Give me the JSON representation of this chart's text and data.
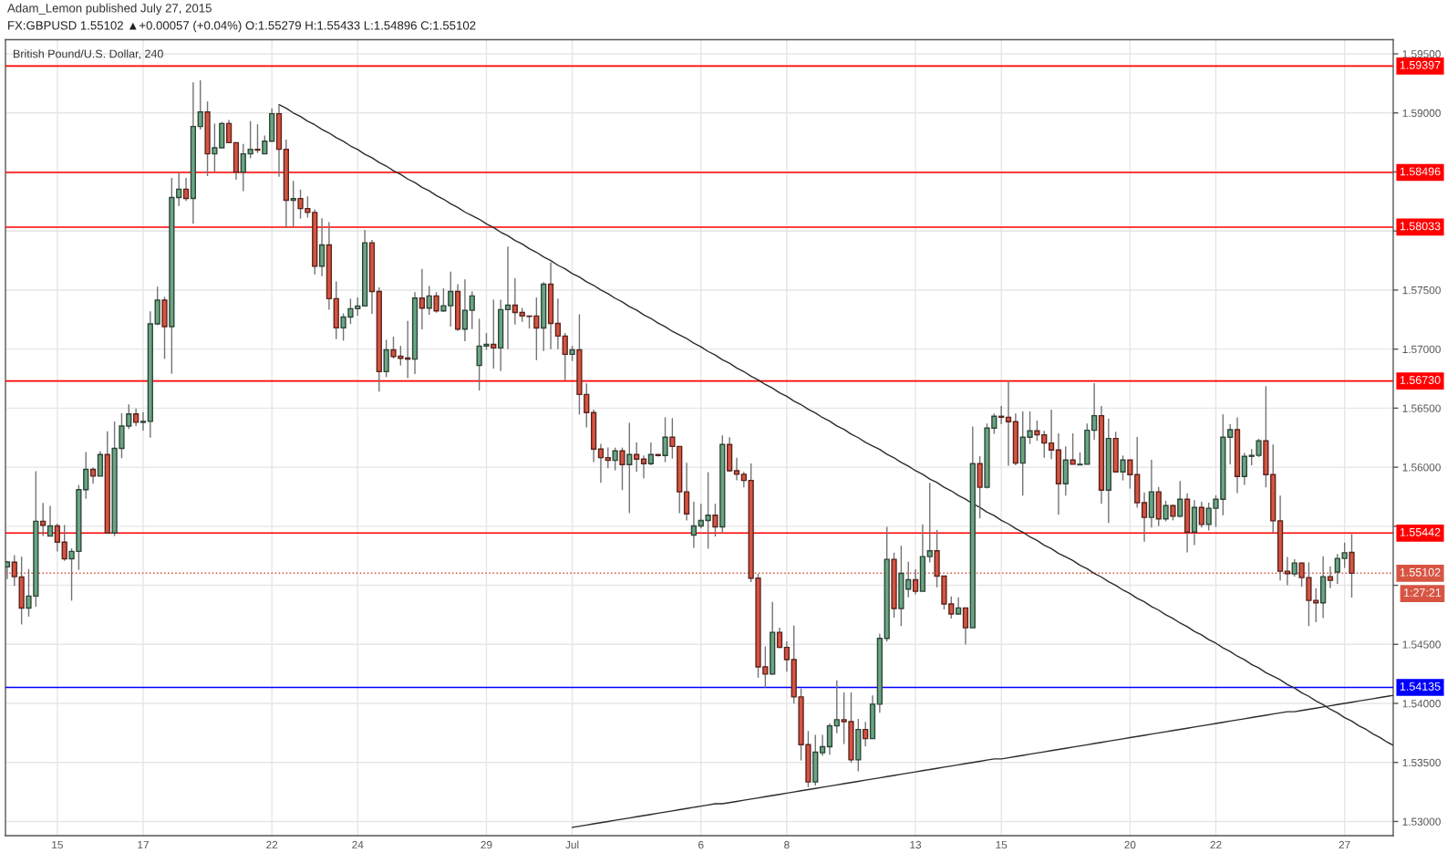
{
  "chart_data": {
    "type": "candlestick",
    "title": "British Pound/U.S. Dollar, 240",
    "subtitle": "FX:GBPUSD 1.55102 ▲+0.00057 (+0.04%) O:1.55279 H:1.55433 L:1.54896 C:1.55102",
    "annotations": [
      "Adam_Lemon published July 27, 2015",
      "1:27:21"
    ],
    "categories": [
      null,
      null,
      null,
      null,
      null,
      null,
      null,
      "15",
      null,
      null,
      null,
      null,
      null,
      null,
      null,
      null,
      null,
      null,
      null,
      "17",
      null,
      null,
      null,
      null,
      null,
      null,
      null,
      null,
      null,
      null,
      null,
      null,
      null,
      null,
      null,
      null,
      null,
      "22",
      null,
      null,
      null,
      null,
      null,
      null,
      null,
      null,
      null,
      null,
      null,
      "24",
      null,
      null,
      null,
      null,
      null,
      null,
      null,
      null,
      null,
      null,
      null,
      null,
      null,
      null,
      null,
      null,
      null,
      "29",
      null,
      null,
      null,
      null,
      null,
      null,
      null,
      null,
      null,
      null,
      null,
      "Jul",
      null,
      null,
      null,
      null,
      null,
      null,
      null,
      null,
      null,
      null,
      null,
      null,
      null,
      null,
      null,
      null,
      null,
      "6",
      null,
      null,
      null,
      null,
      null,
      null,
      null,
      null,
      null,
      null,
      null,
      "8",
      null,
      null,
      null,
      null,
      null,
      null,
      null,
      null,
      null,
      null,
      null,
      null,
      null,
      null,
      null,
      null,
      null,
      "13",
      null,
      null,
      null,
      null,
      null,
      null,
      null,
      null,
      null,
      null,
      null,
      "15",
      null,
      null,
      null,
      null,
      null,
      null,
      null,
      null,
      null,
      null,
      null,
      null,
      null,
      null,
      null,
      null,
      null,
      "20",
      null,
      null,
      null,
      null,
      null,
      null,
      null,
      null,
      null,
      null,
      null,
      "22",
      null,
      null,
      null,
      null,
      null,
      null,
      null,
      null,
      null,
      null,
      null,
      null,
      null,
      null,
      null,
      null,
      null,
      "27",
      null,
      null,
      null,
      null,
      null,
      null,
      null
    ],
    "ohlc": [
      [
        1.55156,
        1.55208,
        1.55052,
        1.55198
      ],
      [
        1.55196,
        1.55255,
        1.54995,
        1.55073
      ],
      [
        1.5507,
        1.55242,
        1.54669,
        1.54807
      ],
      [
        1.54807,
        1.55138,
        1.54735,
        1.54909
      ],
      [
        1.54909,
        1.55966,
        1.54818,
        1.55542
      ],
      [
        1.55542,
        1.55698,
        1.55417,
        1.55508
      ],
      [
        1.55417,
        1.55672,
        1.55417,
        1.55503
      ],
      [
        1.55503,
        1.55521,
        1.55287,
        1.55365
      ],
      [
        1.55365,
        1.55511,
        1.55208,
        1.55224
      ],
      [
        1.55224,
        1.55313,
        1.5487,
        1.55287
      ],
      [
        1.55287,
        1.55849,
        1.5513,
        1.5581
      ],
      [
        1.5581,
        1.56128,
        1.55732,
        1.55982
      ],
      [
        1.55982,
        1.55997,
        1.5586,
        1.55925
      ],
      [
        1.55925,
        1.56136,
        1.55925,
        1.56107
      ],
      [
        1.56107,
        1.56305,
        1.55443,
        1.55443
      ],
      [
        1.55443,
        1.56388,
        1.55417,
        1.56159
      ],
      [
        1.56159,
        1.56458,
        1.56076,
        1.56349
      ],
      [
        1.56349,
        1.56531,
        1.56323,
        1.56451
      ],
      [
        1.56451,
        1.56497,
        1.56349,
        1.5638
      ],
      [
        1.5638,
        1.56466,
        1.5631,
        1.56388
      ],
      [
        1.56388,
        1.5732,
        1.5625,
        1.57214
      ],
      [
        1.57214,
        1.57529,
        1.57203,
        1.57414
      ],
      [
        1.57414,
        1.57443,
        1.56917,
        1.5719
      ],
      [
        1.5719,
        1.5845,
        1.56792,
        1.58284
      ],
      [
        1.58284,
        1.5849,
        1.58211,
        1.58354
      ],
      [
        1.58354,
        1.5845,
        1.58255,
        1.58276
      ],
      [
        1.58276,
        1.59258,
        1.58062,
        1.58885
      ],
      [
        1.58885,
        1.59276,
        1.58859,
        1.59008
      ],
      [
        1.59008,
        1.59096,
        1.58466,
        1.58653
      ],
      [
        1.58653,
        1.5891,
        1.58504,
        1.58705
      ],
      [
        1.58705,
        1.58923,
        1.58705,
        1.5891
      ],
      [
        1.5891,
        1.58941,
        1.58748,
        1.58748
      ],
      [
        1.58748,
        1.58748,
        1.58435,
        1.58499
      ],
      [
        1.58499,
        1.58738,
        1.58337,
        1.58653
      ],
      [
        1.58653,
        1.58931,
        1.58615,
        1.58692
      ],
      [
        1.58692,
        1.58903,
        1.58661,
        1.58684
      ],
      [
        1.58653,
        1.58808,
        1.58653,
        1.58761
      ],
      [
        1.58761,
        1.59039,
        1.58761,
        1.58993
      ],
      [
        1.58993,
        1.5907,
        1.5846,
        1.58692
      ],
      [
        1.58692,
        1.58774,
        1.58028,
        1.5826
      ],
      [
        1.5826,
        1.58424,
        1.58028,
        1.58275
      ],
      [
        1.58275,
        1.58352,
        1.58106,
        1.5819
      ],
      [
        1.5819,
        1.58293,
        1.58113,
        1.58157
      ],
      [
        1.58157,
        1.58183,
        1.57632,
        1.57702
      ],
      [
        1.57702,
        1.58108,
        1.57617,
        1.57882
      ],
      [
        1.57882,
        1.58075,
        1.57334,
        1.57427
      ],
      [
        1.57427,
        1.57573,
        1.57085,
        1.5718
      ],
      [
        1.5718,
        1.57303,
        1.57072,
        1.57272
      ],
      [
        1.57272,
        1.57427,
        1.57213,
        1.57342
      ],
      [
        1.57342,
        1.57437,
        1.57282,
        1.57365
      ],
      [
        1.57365,
        1.5801,
        1.5736,
        1.579
      ],
      [
        1.579,
        1.57925,
        1.57298,
        1.57488
      ],
      [
        1.57488,
        1.57522,
        1.5664,
        1.56809
      ],
      [
        1.56809,
        1.57079,
        1.56763,
        1.56994
      ],
      [
        1.56994,
        1.57105,
        1.5692,
        1.56938
      ],
      [
        1.5694,
        1.57028,
        1.56861,
        1.56922
      ],
      [
        1.56925,
        1.57239,
        1.56755,
        1.56915
      ],
      [
        1.56915,
        1.57483,
        1.56789,
        1.57432
      ],
      [
        1.57432,
        1.5768,
        1.57167,
        1.57347
      ],
      [
        1.57347,
        1.57535,
        1.5729,
        1.5745
      ],
      [
        1.5745,
        1.57483,
        1.57308,
        1.57324
      ],
      [
        1.57324,
        1.57514,
        1.57316,
        1.57367
      ],
      [
        1.57367,
        1.57655,
        1.5719,
        1.57488
      ],
      [
        1.57488,
        1.5755,
        1.57154,
        1.57169
      ],
      [
        1.57169,
        1.57591,
        1.57066,
        1.57329
      ],
      [
        1.57329,
        1.57488,
        1.57169,
        1.5745
      ],
      [
        1.56861,
        1.57257,
        1.5665,
        1.57025
      ],
      [
        1.57025,
        1.57136,
        1.56994,
        1.5704
      ],
      [
        1.5704,
        1.57419,
        1.56835,
        1.5701
      ],
      [
        1.5701,
        1.57419,
        1.56814,
        1.57334
      ],
      [
        1.57334,
        1.57869,
        1.57,
        1.57372
      ],
      [
        1.57372,
        1.57599,
        1.57208,
        1.5731
      ],
      [
        1.5731,
        1.57349,
        1.57231,
        1.5728
      ],
      [
        1.5728,
        1.57282,
        1.57174,
        1.57277
      ],
      [
        1.5728,
        1.57437,
        1.56907,
        1.57179
      ],
      [
        1.57179,
        1.57568,
        1.56984,
        1.5755
      ],
      [
        1.5755,
        1.57735,
        1.57,
        1.57218
      ],
      [
        1.57218,
        1.57429,
        1.57,
        1.5711
      ],
      [
        1.5711,
        1.57136,
        1.56737,
        1.56956
      ],
      [
        1.56956,
        1.57028,
        1.56899,
        1.56994
      ],
      [
        1.56994,
        1.57295,
        1.56446,
        1.56616
      ],
      [
        1.56616,
        1.5671,
        1.56336,
        1.56462
      ],
      [
        1.56462,
        1.56488,
        1.56043,
        1.56153
      ],
      [
        1.56153,
        1.56197,
        1.55868,
        1.56081
      ],
      [
        1.56081,
        1.56166,
        1.55991,
        1.56058
      ],
      [
        1.56058,
        1.56166,
        1.55973,
        1.56138
      ],
      [
        1.56138,
        1.56166,
        1.55806,
        1.56022
      ],
      [
        1.56022,
        1.56377,
        1.55611,
        1.56107
      ],
      [
        1.56107,
        1.5621,
        1.5596,
        1.56068
      ],
      [
        1.56068,
        1.561,
        1.55906,
        1.5603
      ],
      [
        1.5603,
        1.5621,
        1.56017,
        1.56107
      ],
      [
        1.56107,
        1.5611,
        1.5609,
        1.56099
      ],
      [
        1.56099,
        1.56423,
        1.56043,
        1.56254
      ],
      [
        1.56254,
        1.56416,
        1.56073,
        1.56176
      ],
      [
        1.56176,
        1.56176,
        1.55611,
        1.55791
      ],
      [
        1.55791,
        1.56037,
        1.55549,
        1.55605
      ],
      [
        1.55425,
        1.55708,
        1.55317,
        1.55503
      ],
      [
        1.55503,
        1.5569,
        1.55482,
        1.55549
      ],
      [
        1.55549,
        1.55958,
        1.5531,
        1.55593
      ],
      [
        1.55593,
        1.5569,
        1.55413,
        1.55495
      ],
      [
        1.55495,
        1.5627,
        1.55438,
        1.56192
      ],
      [
        1.56192,
        1.56254,
        1.5596,
        1.5597
      ],
      [
        1.5597,
        1.56081,
        1.55888,
        1.5594
      ],
      [
        1.5594,
        1.5596,
        1.55829,
        1.55888
      ],
      [
        1.55888,
        1.56032,
        1.55027,
        1.5506
      ],
      [
        1.5506,
        1.55096,
        1.54217,
        1.54309
      ],
      [
        1.54309,
        1.54482,
        1.54134,
        1.54248
      ],
      [
        1.54248,
        1.5486,
        1.5424,
        1.54602
      ],
      [
        1.54602,
        1.54641,
        1.54469,
        1.54474
      ],
      [
        1.54474,
        1.54525,
        1.54268,
        1.54371
      ],
      [
        1.54371,
        1.54659,
        1.53998,
        1.54055
      ],
      [
        1.54055,
        1.54127,
        1.53517,
        1.53651
      ],
      [
        1.53651,
        1.53766,
        1.53291,
        1.53335
      ],
      [
        1.53335,
        1.53733,
        1.53304,
        1.53587
      ],
      [
        1.53582,
        1.53733,
        1.53556,
        1.53633
      ],
      [
        1.53633,
        1.53831,
        1.53566,
        1.5381
      ],
      [
        1.5381,
        1.54196,
        1.53748,
        1.53862
      ],
      [
        1.53862,
        1.54093,
        1.53656,
        1.53846
      ],
      [
        1.53846,
        1.54093,
        1.53497,
        1.53522
      ],
      [
        1.53522,
        1.53869,
        1.53425,
        1.53779
      ],
      [
        1.53779,
        1.53844,
        1.53638,
        1.53702
      ],
      [
        1.53702,
        1.54068,
        1.537,
        1.53993
      ],
      [
        1.53993,
        1.5459,
        1.53921,
        1.54551
      ],
      [
        1.54551,
        1.55495,
        1.54525,
        1.5522
      ],
      [
        1.5522,
        1.55276,
        1.54726,
        1.54803
      ],
      [
        1.54803,
        1.55335,
        1.54654,
        1.55101
      ],
      [
        1.54968,
        1.55199,
        1.54898,
        1.55047
      ],
      [
        1.55047,
        1.55135,
        1.54924,
        1.54949
      ],
      [
        1.54949,
        1.55516,
        1.54949,
        1.55243
      ],
      [
        1.55243,
        1.55868,
        1.55194,
        1.55292
      ],
      [
        1.55292,
        1.55469,
        1.54983,
        1.55078
      ],
      [
        1.55078,
        1.55078,
        1.54795,
        1.54842
      ],
      [
        1.54842,
        1.54906,
        1.54718,
        1.54757
      ],
      [
        1.54757,
        1.54898,
        1.54757,
        1.54808
      ],
      [
        1.54808,
        1.54808,
        1.54499,
        1.5464
      ],
      [
        1.5464,
        1.56344,
        1.5464,
        1.5603
      ],
      [
        1.5603,
        1.56094,
        1.55567,
        1.5583
      ],
      [
        1.5583,
        1.5637,
        1.5582,
        1.56331
      ],
      [
        1.56331,
        1.56454,
        1.56282,
        1.56431
      ],
      [
        1.56431,
        1.56518,
        1.56364,
        1.56423
      ],
      [
        1.56423,
        1.56732,
        1.56012,
        1.56385
      ],
      [
        1.56385,
        1.56454,
        1.56017,
        1.56035
      ],
      [
        1.56035,
        1.56472,
        1.5576,
        1.56254
      ],
      [
        1.56254,
        1.56472,
        1.56197,
        1.56308
      ],
      [
        1.56308,
        1.56395,
        1.56223,
        1.56274
      ],
      [
        1.56274,
        1.56308,
        1.56081,
        1.56205
      ],
      [
        1.56205,
        1.56488,
        1.56068,
        1.56146
      ],
      [
        1.56146,
        1.56287,
        1.55598,
        1.5586
      ],
      [
        1.5586,
        1.56176,
        1.5576,
        1.56061
      ],
      [
        1.56061,
        1.56287,
        1.56025,
        1.56025
      ],
      [
        1.5602,
        1.56125,
        1.5602,
        1.56025
      ],
      [
        1.56025,
        1.5637,
        1.56025,
        1.56313
      ],
      [
        1.56313,
        1.56711,
        1.5623,
        1.56436
      ],
      [
        1.56436,
        1.56518,
        1.5569,
        1.55806
      ],
      [
        1.55806,
        1.5641,
        1.55528,
        1.56243
      ],
      [
        1.56243,
        1.563,
        1.5596,
        1.5596
      ],
      [
        1.5596,
        1.56099,
        1.55888,
        1.56061
      ],
      [
        1.56061,
        1.56061,
        1.55819,
        1.55937
      ],
      [
        1.55937,
        1.56256,
        1.55657,
        1.557
      ],
      [
        1.557,
        1.55786,
        1.5537,
        1.55575
      ],
      [
        1.55575,
        1.56063,
        1.5549,
        1.55791
      ],
      [
        1.55791,
        1.55832,
        1.55503,
        1.55562
      ],
      [
        1.55562,
        1.55716,
        1.55541,
        1.55675
      ],
      [
        1.55675,
        1.55683,
        1.5555,
        1.55585
      ],
      [
        1.55585,
        1.55883,
        1.55575,
        1.55729
      ],
      [
        1.55729,
        1.55778,
        1.55279,
        1.55451
      ],
      [
        1.55451,
        1.5572,
        1.5534,
        1.55659
      ],
      [
        1.55659,
        1.55708,
        1.5549,
        1.55515
      ],
      [
        1.55515,
        1.557,
        1.55464,
        1.55652
      ],
      [
        1.55652,
        1.55762,
        1.55495,
        1.55729
      ],
      [
        1.55729,
        1.56447,
        1.55593,
        1.56254
      ],
      [
        1.56254,
        1.56364,
        1.56025,
        1.56318
      ],
      [
        1.56318,
        1.56421,
        1.5578,
        1.55922
      ],
      [
        1.55922,
        1.5612,
        1.5585,
        1.56092
      ],
      [
        1.56092,
        1.56153,
        1.56017,
        1.561
      ],
      [
        1.561,
        1.56241,
        1.56086,
        1.56223
      ],
      [
        1.56223,
        1.56686,
        1.55829,
        1.55937
      ],
      [
        1.55937,
        1.56192,
        1.55443,
        1.55546
      ],
      [
        1.55546,
        1.5576,
        1.55042,
        1.55119
      ],
      [
        1.55119,
        1.5524,
        1.55001,
        1.55099
      ],
      [
        1.55096,
        1.5522,
        1.55073,
        1.55189
      ],
      [
        1.55189,
        1.55194,
        1.54988,
        1.55065
      ],
      [
        1.55065,
        1.55194,
        1.54654,
        1.54872
      ],
      [
        1.54872,
        1.54975,
        1.54687,
        1.54852
      ],
      [
        1.54852,
        1.55245,
        1.54723,
        1.55073
      ],
      [
        1.55073,
        1.55161,
        1.54975,
        1.55042
      ],
      [
        1.55112,
        1.55266,
        1.55013,
        1.55227
      ],
      [
        1.55227,
        1.55361,
        1.55147,
        1.55276
      ],
      [
        1.55279,
        1.55433,
        1.54896,
        1.55102
      ],
      null,
      null,
      null,
      null,
      null,
      null
    ],
    "colors": [
      "#6ba583",
      "#d75442",
      "#d75442",
      "#6ba583",
      "#6ba583",
      "#d75442",
      "#6ba583",
      "#d75442",
      "#d75442",
      "#6ba583",
      "#6ba583",
      "#6ba583",
      "#d75442",
      "#6ba583",
      "#d75442",
      "#6ba583",
      "#6ba583",
      "#6ba583",
      "#d75442",
      "#6ba583",
      "#6ba583",
      "#6ba583",
      "#d75442",
      "#6ba583",
      "#6ba583",
      "#d75442",
      "#6ba583",
      "#6ba583",
      "#d75442",
      "#6ba583",
      "#6ba583",
      "#d75442",
      "#d75442",
      "#6ba583",
      "#6ba583",
      "#d75442",
      "#6ba583",
      "#6ba583",
      "#d75442",
      "#d75442",
      "#6ba583",
      "#d75442",
      "#d75442",
      "#d75442",
      "#6ba583",
      "#d75442",
      "#d75442",
      "#6ba583",
      "#6ba583",
      "#6ba583",
      "#6ba583",
      "#d75442",
      "#d75442",
      "#6ba583",
      "#d75442",
      "#d75442",
      "#d75442",
      "#6ba583",
      "#d75442",
      "#6ba583",
      "#d75442",
      "#6ba583",
      "#6ba583",
      "#d75442",
      "#6ba583",
      "#6ba583",
      "#6ba583",
      "#6ba583",
      "#d75442",
      "#6ba583",
      "#6ba583",
      "#d75442",
      "#d75442",
      "#d75442",
      "#d75442",
      "#6ba583",
      "#d75442",
      "#d75442",
      "#d75442",
      "#6ba583",
      "#d75442",
      "#d75442",
      "#d75442",
      "#d75442",
      "#d75442",
      "#6ba583",
      "#d75442",
      "#6ba583",
      "#d75442",
      "#d75442",
      "#6ba583",
      "#d75442",
      "#6ba583",
      "#d75442",
      "#d75442",
      "#d75442",
      "#6ba583",
      "#6ba583",
      "#6ba583",
      "#d75442",
      "#6ba583",
      "#d75442",
      "#d75442",
      "#d75442",
      "#d75442",
      "#d75442",
      "#d75442",
      "#6ba583",
      "#d75442",
      "#d75442",
      "#d75442",
      "#d75442",
      "#d75442",
      "#6ba583",
      "#6ba583",
      "#6ba583",
      "#6ba583",
      "#d75442",
      "#d75442",
      "#6ba583",
      "#d75442",
      "#6ba583",
      "#6ba583",
      "#6ba583",
      "#d75442",
      "#6ba583",
      "#6ba583",
      "#d75442",
      "#6ba583",
      "#6ba583",
      "#d75442",
      "#d75442",
      "#d75442",
      "#6ba583",
      "#d75442",
      "#6ba583",
      "#d75442",
      "#6ba583",
      "#6ba583",
      "#d75442",
      "#d75442",
      "#d75442",
      "#6ba583",
      "#6ba583",
      "#d75442",
      "#d75442",
      "#d75442",
      "#d75442",
      "#6ba583",
      "#d75442",
      "#6ba583",
      "#6ba583",
      "#6ba583",
      "#d75442",
      "#6ba583",
      "#d75442",
      "#6ba583",
      "#d75442",
      "#d75442",
      "#d75442",
      "#6ba583",
      "#d75442",
      "#6ba583",
      "#d75442",
      "#6ba583",
      "#d75442",
      "#6ba583",
      "#d75442",
      "#6ba583",
      "#6ba583",
      "#6ba583",
      "#6ba583",
      "#d75442",
      "#6ba583",
      "#6ba583",
      "#6ba583",
      "#d75442",
      "#d75442",
      "#d75442",
      "#d75442",
      "#6ba583",
      "#d75442",
      "#d75442",
      "#d75442",
      "#6ba583",
      "#d75442",
      "#6ba583",
      "#6ba583",
      "#d75442",
      null,
      null,
      null,
      null,
      null,
      null
    ],
    "series": [
      {
        "type": "line",
        "color": "#2b2b2b",
        "values": [
          null,
          null,
          null,
          null,
          null,
          null,
          null,
          null,
          null,
          null,
          null,
          null,
          null,
          null,
          null,
          null,
          null,
          null,
          null,
          null,
          null,
          null,
          null,
          null,
          null,
          null,
          null,
          null,
          null,
          null,
          null,
          null,
          null,
          null,
          null,
          null,
          null,
          null,
          1.5907,
          1.5904,
          1.59,
          1.5897,
          1.5893,
          1.589,
          1.5886,
          1.5883,
          1.5879,
          1.5876,
          1.5872,
          1.5869,
          1.5865,
          1.5862,
          1.5858,
          1.5855,
          1.5851,
          1.5848,
          1.5844,
          1.5841,
          1.5837,
          1.5834,
          1.583,
          1.5827,
          1.5823,
          1.582,
          1.5816,
          1.5813,
          1.581,
          1.5806,
          1.5803,
          1.5799,
          1.5796,
          1.5792,
          1.5789,
          1.5785,
          1.5782,
          1.5778,
          1.5775,
          1.5771,
          1.5768,
          1.5764,
          1.5761,
          1.5757,
          1.5754,
          1.575,
          1.5747,
          1.5743,
          1.574,
          1.5736,
          1.5733,
          1.5729,
          1.5726,
          1.5722,
          1.5719,
          1.5715,
          1.5712,
          1.5709,
          1.5705,
          1.5702,
          1.5698,
          1.5695,
          1.5691,
          1.5688,
          1.5684,
          1.5681,
          1.5677,
          1.5674,
          1.567,
          1.5667,
          1.5663,
          1.566,
          1.5656,
          1.5653,
          1.5649,
          1.5646,
          1.5642,
          1.5639,
          1.5635,
          1.5632,
          1.5628,
          1.5625,
          1.5621,
          1.5618,
          1.5615,
          1.5611,
          1.5608,
          1.5604,
          1.5601,
          1.5597,
          1.5594,
          1.559,
          1.5587,
          1.5583,
          1.558,
          1.5576,
          1.5573,
          1.5569,
          1.5566,
          1.5562,
          1.5559,
          1.5555,
          1.5552,
          1.5548,
          1.5545,
          1.5541,
          1.5538,
          1.5534,
          1.5531,
          1.5527,
          1.5524,
          1.5521,
          1.5517,
          1.5514,
          1.551,
          1.5507,
          1.5503,
          1.55,
          1.5496,
          1.5493,
          1.5489,
          1.5486,
          1.5482,
          1.5479,
          1.5475,
          1.5472,
          1.5468,
          1.5465,
          1.5461,
          1.5458,
          1.5454,
          1.5451,
          1.5447,
          1.5444,
          1.544,
          1.5437,
          1.5433,
          1.543,
          1.5426,
          1.5423,
          1.542,
          1.5416,
          1.5413,
          1.5409,
          1.5406,
          1.5402,
          1.5399,
          1.5395,
          1.5392,
          1.5388,
          1.5385,
          1.5381,
          1.5378,
          1.5374,
          1.5371,
          1.5367,
          1.5364
        ]
      },
      {
        "type": "line",
        "color": "#2b2b2b",
        "values": [
          null,
          null,
          null,
          null,
          null,
          null,
          null,
          null,
          null,
          null,
          null,
          null,
          null,
          null,
          null,
          null,
          null,
          null,
          null,
          null,
          null,
          null,
          null,
          null,
          null,
          null,
          null,
          null,
          null,
          null,
          null,
          null,
          null,
          null,
          null,
          null,
          null,
          null,
          null,
          null,
          null,
          null,
          null,
          null,
          null,
          null,
          null,
          null,
          null,
          null,
          null,
          null,
          null,
          null,
          null,
          null,
          null,
          null,
          null,
          null,
          null,
          null,
          null,
          null,
          null,
          null,
          null,
          null,
          null,
          null,
          null,
          null,
          null,
          null,
          null,
          null,
          null,
          null,
          null,
          1.5295,
          1.5296,
          1.5297,
          1.5298,
          1.5299,
          1.53,
          1.5301,
          1.5302,
          1.5303,
          1.5304,
          1.5305,
          1.5306,
          1.5307,
          1.5308,
          1.5309,
          1.531,
          1.5311,
          1.5312,
          1.5313,
          1.5314,
          1.5315,
          1.5315,
          1.5316,
          1.5317,
          1.5318,
          1.5319,
          1.532,
          1.5321,
          1.5322,
          1.5323,
          1.5324,
          1.5325,
          1.5326,
          1.5327,
          1.5328,
          1.5329,
          1.533,
          1.5331,
          1.5332,
          1.5333,
          1.5334,
          1.5335,
          1.5336,
          1.5337,
          1.5338,
          1.5339,
          1.534,
          1.5341,
          1.5342,
          1.5343,
          1.5344,
          1.5345,
          1.5346,
          1.5347,
          1.5348,
          1.5349,
          1.535,
          1.5351,
          1.5352,
          1.5353,
          1.5353,
          1.5354,
          1.5355,
          1.5356,
          1.5357,
          1.5358,
          1.5359,
          1.536,
          1.5361,
          1.5362,
          1.5363,
          1.5364,
          1.5365,
          1.5366,
          1.5367,
          1.5368,
          1.5369,
          1.537,
          1.5371,
          1.5372,
          1.5373,
          1.5374,
          1.5375,
          1.5376,
          1.5377,
          1.5378,
          1.5379,
          1.538,
          1.5381,
          1.5382,
          1.5383,
          1.5384,
          1.5385,
          1.5386,
          1.5387,
          1.5388,
          1.5389,
          1.539,
          1.5391,
          1.5392,
          1.5393,
          1.5393,
          1.5394,
          1.5395,
          1.5396,
          1.5397,
          1.5398,
          1.5399,
          1.54,
          1.5401,
          1.5402,
          1.5403,
          1.5404,
          1.5405,
          1.5406,
          1.5407
        ]
      }
    ],
    "ylim": [
      1.5288,
      1.5962
    ],
    "yticks": [
      {
        "value": 1.53,
        "label": "1.53000"
      },
      {
        "value": 1.535,
        "label": "1.53500"
      },
      {
        "value": 1.54,
        "label": "1.54000"
      },
      {
        "value": 1.545,
        "label": "1.54500"
      },
      {
        "value": 1.55,
        "label": null
      },
      {
        "value": 1.555,
        "label": null
      },
      {
        "value": 1.56,
        "label": "1.56000"
      },
      {
        "value": 1.565,
        "label": "1.56500"
      },
      {
        "value": 1.57,
        "label": "1.57000"
      },
      {
        "value": 1.575,
        "label": "1.57500"
      },
      {
        "value": 1.58,
        "label": null
      },
      {
        "value": 1.585,
        "label": null
      },
      {
        "value": 1.59,
        "label": "1.59000"
      },
      {
        "value": 1.595,
        "label": "1.59500"
      }
    ],
    "ref_lines": [
      {
        "axis": "y",
        "value": 1.59397,
        "label": "1.59397",
        "color": "#ff0000"
      },
      {
        "axis": "y",
        "value": 1.58496,
        "label": "1.58496",
        "color": "#ff0000"
      },
      {
        "axis": "y",
        "value": 1.58033,
        "label": "1.58033",
        "color": "#ff0000"
      },
      {
        "axis": "y",
        "value": 1.5673,
        "label": "1.56730",
        "color": "#ff0000"
      },
      {
        "axis": "y",
        "value": 1.55442,
        "label": "1.55442",
        "color": "#ff0000"
      },
      {
        "axis": "y",
        "value": 1.54135,
        "label": "1.54135",
        "color": "#0000ff"
      },
      {
        "axis": "y",
        "value": 1.55102,
        "label": "1.55102",
        "color": "#d75442",
        "line_style": "dotted"
      }
    ],
    "grid": true
  }
}
